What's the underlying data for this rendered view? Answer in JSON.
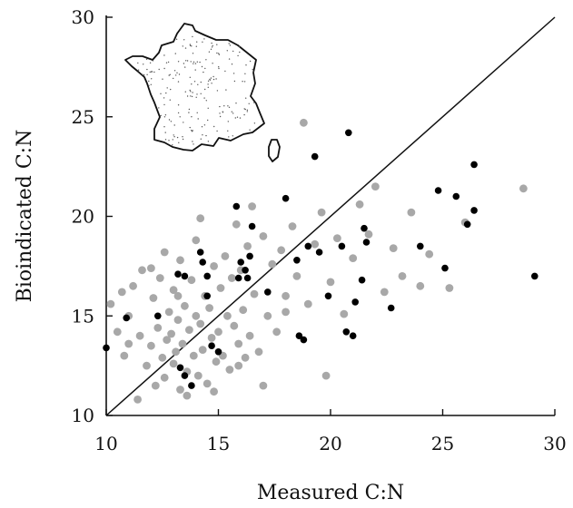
{
  "chart_data": {
    "type": "scatter",
    "xlabel": "Measured C:N",
    "ylabel": "Bioindicated C:N",
    "xlim": [
      10,
      30
    ],
    "ylim": [
      10,
      30
    ],
    "x_ticks": [
      "10",
      "15",
      "20",
      "25",
      "30"
    ],
    "y_ticks": [
      "10",
      "15",
      "20",
      "25",
      "30"
    ],
    "grid": false,
    "reference_line": "y = x",
    "inset": "map-of-france",
    "colors": {
      "gray_series": "#a8a8a8",
      "black_series": "#000000"
    },
    "series": [
      {
        "color": "#a8a8a8",
        "points": [
          [
            10.2,
            15.6
          ],
          [
            10.5,
            14.2
          ],
          [
            10.8,
            13.0
          ],
          [
            11.0,
            15.0
          ],
          [
            11.2,
            16.5
          ],
          [
            11.5,
            14.0
          ],
          [
            11.6,
            17.3
          ],
          [
            11.8,
            12.5
          ],
          [
            12.0,
            13.5
          ],
          [
            12.1,
            15.9
          ],
          [
            12.3,
            14.4
          ],
          [
            12.4,
            16.9
          ],
          [
            12.5,
            12.9
          ],
          [
            12.6,
            11.9
          ],
          [
            12.7,
            13.8
          ],
          [
            12.8,
            15.2
          ],
          [
            12.9,
            14.1
          ],
          [
            13.0,
            16.3
          ],
          [
            13.0,
            12.6
          ],
          [
            13.1,
            13.2
          ],
          [
            13.2,
            14.8
          ],
          [
            13.3,
            17.8
          ],
          [
            13.3,
            11.3
          ],
          [
            13.4,
            13.6
          ],
          [
            13.5,
            15.5
          ],
          [
            13.6,
            12.2
          ],
          [
            13.7,
            14.3
          ],
          [
            13.8,
            16.8
          ],
          [
            13.9,
            13.0
          ],
          [
            14.0,
            15.0
          ],
          [
            14.0,
            18.8
          ],
          [
            14.1,
            12.0
          ],
          [
            14.2,
            14.6
          ],
          [
            14.3,
            13.3
          ],
          [
            14.4,
            16.0
          ],
          [
            14.5,
            11.6
          ],
          [
            14.6,
            15.4
          ],
          [
            14.7,
            13.9
          ],
          [
            14.8,
            17.5
          ],
          [
            14.9,
            12.7
          ],
          [
            15.0,
            14.2
          ],
          [
            15.1,
            16.4
          ],
          [
            15.2,
            13.0
          ],
          [
            15.3,
            18.0
          ],
          [
            15.4,
            15.0
          ],
          [
            15.5,
            12.3
          ],
          [
            15.6,
            16.9
          ],
          [
            15.7,
            14.5
          ],
          [
            15.8,
            19.6
          ],
          [
            15.9,
            13.6
          ],
          [
            16.0,
            17.3
          ],
          [
            16.1,
            15.3
          ],
          [
            16.2,
            12.9
          ],
          [
            16.3,
            18.5
          ],
          [
            16.4,
            14.0
          ],
          [
            16.6,
            16.1
          ],
          [
            16.8,
            13.2
          ],
          [
            17.0,
            19.0
          ],
          [
            17.2,
            15.0
          ],
          [
            17.4,
            17.6
          ],
          [
            17.6,
            14.2
          ],
          [
            17.8,
            18.3
          ],
          [
            18.0,
            16.0
          ],
          [
            18.3,
            19.5
          ],
          [
            18.5,
            17.0
          ],
          [
            18.8,
            24.7
          ],
          [
            19.0,
            15.6
          ],
          [
            19.3,
            18.6
          ],
          [
            19.6,
            20.2
          ],
          [
            19.8,
            12.0
          ],
          [
            20.0,
            16.7
          ],
          [
            20.3,
            18.9
          ],
          [
            20.6,
            15.1
          ],
          [
            21.0,
            17.9
          ],
          [
            21.3,
            20.6
          ],
          [
            21.7,
            19.1
          ],
          [
            22.0,
            21.5
          ],
          [
            22.4,
            16.2
          ],
          [
            22.8,
            18.4
          ],
          [
            23.2,
            17.0
          ],
          [
            23.6,
            20.2
          ],
          [
            24.0,
            16.5
          ],
          [
            24.4,
            18.1
          ],
          [
            25.3,
            16.4
          ],
          [
            26.0,
            19.7
          ],
          [
            28.6,
            21.4
          ],
          [
            11.4,
            10.8
          ],
          [
            12.2,
            11.5
          ],
          [
            13.6,
            11.0
          ],
          [
            14.8,
            11.2
          ],
          [
            15.9,
            12.5
          ],
          [
            17.0,
            11.5
          ],
          [
            12.0,
            17.4
          ],
          [
            11.0,
            13.6
          ],
          [
            10.7,
            16.2
          ],
          [
            12.6,
            18.2
          ],
          [
            13.2,
            16.0
          ],
          [
            14.2,
            19.9
          ],
          [
            16.5,
            20.5
          ],
          [
            18.0,
            15.2
          ]
        ]
      },
      {
        "color": "#000000",
        "points": [
          [
            10.0,
            13.4
          ],
          [
            10.9,
            14.9
          ],
          [
            12.3,
            15.0
          ],
          [
            13.2,
            17.1
          ],
          [
            13.3,
            12.4
          ],
          [
            13.5,
            12.0
          ],
          [
            13.5,
            17.0
          ],
          [
            13.8,
            11.5
          ],
          [
            14.2,
            18.2
          ],
          [
            14.3,
            17.7
          ],
          [
            14.5,
            17.0
          ],
          [
            14.5,
            16.0
          ],
          [
            14.7,
            13.5
          ],
          [
            15.0,
            13.2
          ],
          [
            15.8,
            20.5
          ],
          [
            15.9,
            16.9
          ],
          [
            16.0,
            17.7
          ],
          [
            16.2,
            17.3
          ],
          [
            16.3,
            16.9
          ],
          [
            16.4,
            18.0
          ],
          [
            16.5,
            19.5
          ],
          [
            17.2,
            16.2
          ],
          [
            18.0,
            20.9
          ],
          [
            18.5,
            17.8
          ],
          [
            18.6,
            14.0
          ],
          [
            18.8,
            13.8
          ],
          [
            19.0,
            18.5
          ],
          [
            19.3,
            23.0
          ],
          [
            19.5,
            18.2
          ],
          [
            19.9,
            16.0
          ],
          [
            20.5,
            18.5
          ],
          [
            20.7,
            14.2
          ],
          [
            20.8,
            24.2
          ],
          [
            21.0,
            14.0
          ],
          [
            21.1,
            15.7
          ],
          [
            21.4,
            16.8
          ],
          [
            21.5,
            19.4
          ],
          [
            21.6,
            18.7
          ],
          [
            22.7,
            15.4
          ],
          [
            24.0,
            18.5
          ],
          [
            24.8,
            21.3
          ],
          [
            25.1,
            17.4
          ],
          [
            25.6,
            21.0
          ],
          [
            26.1,
            19.6
          ],
          [
            26.4,
            22.6
          ],
          [
            26.4,
            20.3
          ],
          [
            29.1,
            17.0
          ]
        ]
      }
    ]
  }
}
